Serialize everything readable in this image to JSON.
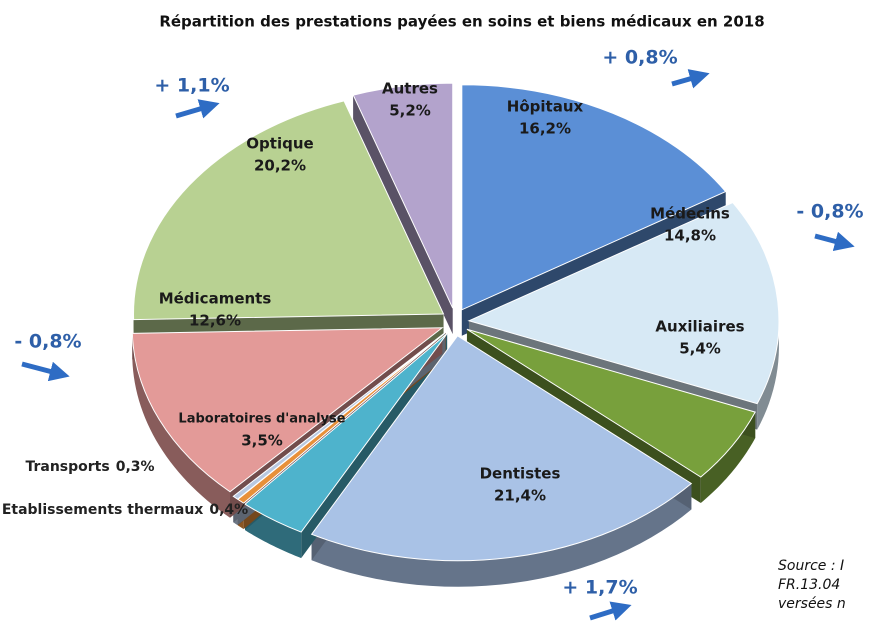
{
  "chart_data": {
    "type": "pie",
    "title": "Répartition des prestations payées en soins et biens médicaux en 2018",
    "categories": [
      "Hôpitaux",
      "Médecins",
      "Auxiliaires",
      "Dentistes",
      "Laboratoires d'analyse",
      "Etablissements thermaux",
      "Transports",
      "Médicaments",
      "Optique",
      "Autres"
    ],
    "values": [
      16.2,
      14.8,
      5.4,
      21.4,
      3.5,
      0.4,
      0.3,
      12.6,
      20.2,
      5.2
    ],
    "value_labels": [
      "16,2%",
      "14,8%",
      "5,4%",
      "21,4%",
      "3,5%",
      "0,4%",
      "0,3%",
      "12,6%",
      "20,2%",
      "5,2%"
    ],
    "colors": [
      "#5b8fd6",
      "#d7e9f5",
      "#78a03c",
      "#a9c2e6",
      "#4eb3cc",
      "#e8903a",
      "#b8c8e0",
      "#e39a98",
      "#b8d192",
      "#b3a3cc"
    ],
    "annotations": [
      "+ 0,8%",
      "- 0,8%",
      "+ 1,7%",
      "- 0,8%",
      "+ 1,1%"
    ],
    "source": [
      "Source : I",
      "FR.13.04",
      "versées n"
    ]
  }
}
